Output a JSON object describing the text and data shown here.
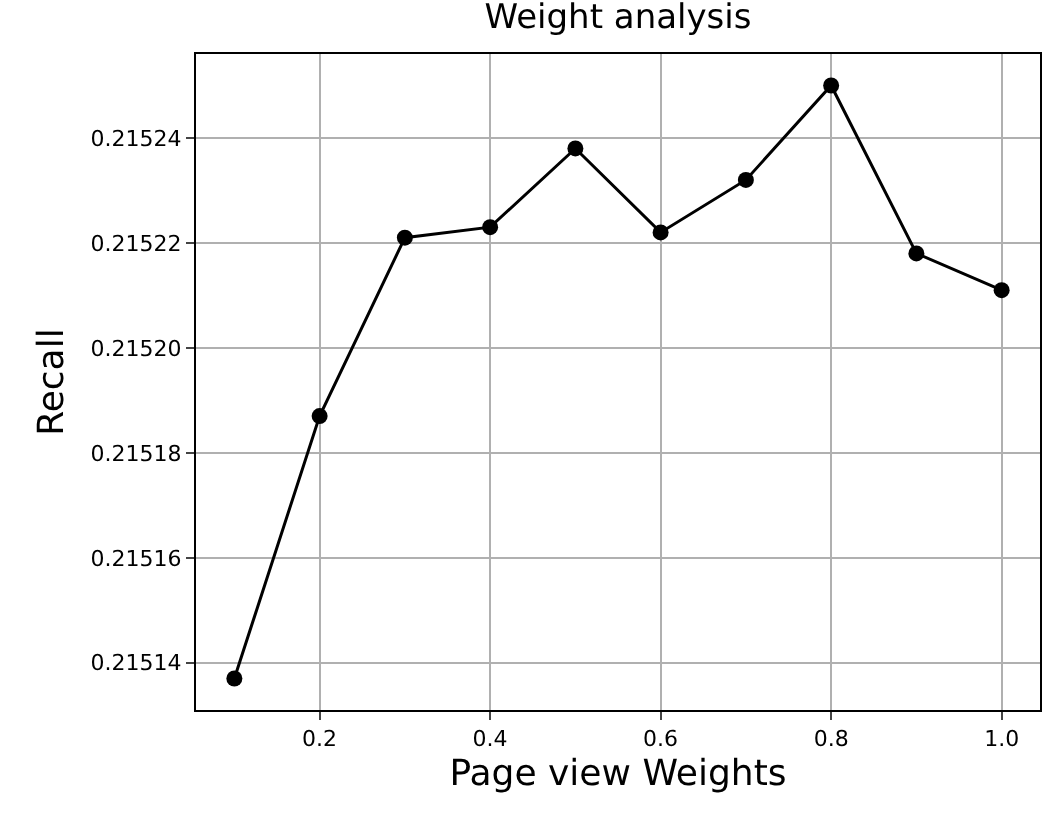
{
  "chart_data": {
    "type": "line",
    "title": "Weight analysis",
    "xlabel": "Page view Weights",
    "ylabel": "Recall",
    "x": [
      0.1,
      0.2,
      0.3,
      0.4,
      0.5,
      0.6,
      0.7,
      0.8,
      0.9,
      1.0
    ],
    "series": [
      {
        "color": "#000000",
        "values": [
          0.215137,
          0.215187,
          0.215221,
          0.215223,
          0.215238,
          0.215222,
          0.215232,
          0.21525,
          0.215218,
          0.215211
        ]
      }
    ],
    "xlim": [
      0.055,
      1.045
    ],
    "xticks": [
      {
        "value": 0.2,
        "label": "0.2"
      },
      {
        "value": 0.4,
        "label": "0.4"
      },
      {
        "value": 0.6,
        "label": "0.6"
      },
      {
        "value": 0.8,
        "label": "0.8"
      },
      {
        "value": 1.0,
        "label": "1.0"
      }
    ],
    "ylim": [
      0.215131,
      0.215256
    ],
    "yticks": [
      {
        "value": 0.21514,
        "label": "0.21514"
      },
      {
        "value": 0.21516,
        "label": "0.21516"
      },
      {
        "value": 0.21518,
        "label": "0.21518"
      },
      {
        "value": 0.2152,
        "label": "0.21520"
      },
      {
        "value": 0.21522,
        "label": "0.21522"
      },
      {
        "value": 0.21524,
        "label": "0.21524"
      }
    ],
    "grid": true,
    "marker": "circle",
    "line_style": "solid"
  }
}
